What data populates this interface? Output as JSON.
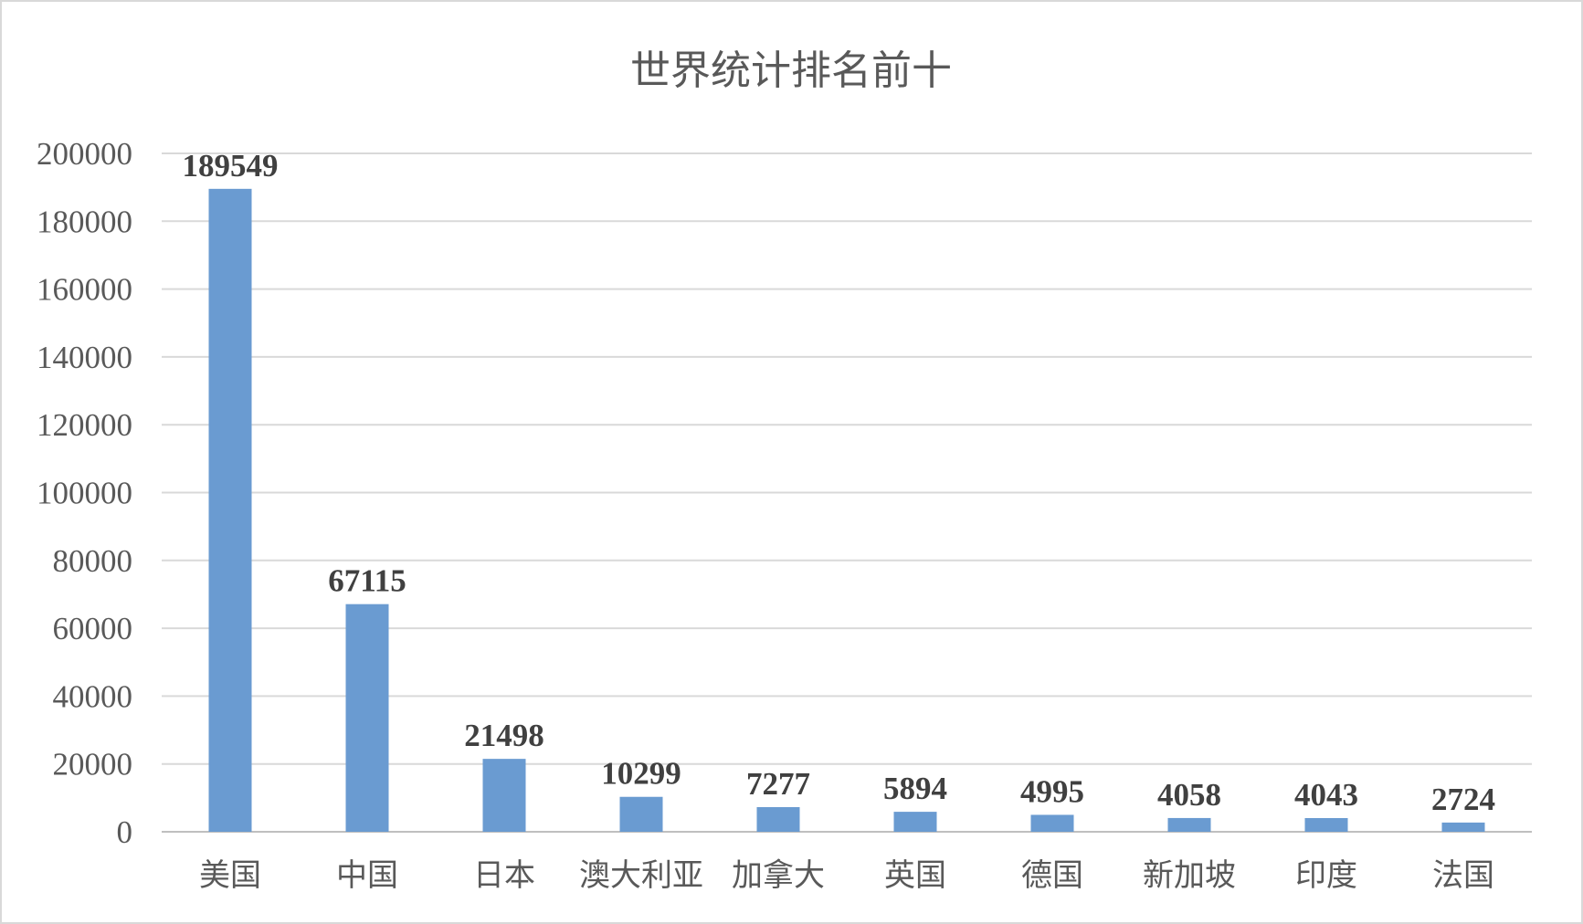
{
  "chart_data": {
    "type": "bar",
    "title": "世界统计排名前十",
    "categories": [
      "美国",
      "中国",
      "日本",
      "澳大利亚",
      "加拿大",
      "英国",
      "德国",
      "新加坡",
      "印度",
      "法国"
    ],
    "values": [
      189549,
      67115,
      21498,
      10299,
      7277,
      5894,
      4995,
      4058,
      4043,
      2724
    ],
    "data_labels": [
      "189549",
      "67115",
      "21498",
      "10299",
      "7277",
      "5894",
      "4995",
      "4058",
      "4043",
      "2724"
    ],
    "yticks": [
      "0",
      "20000",
      "40000",
      "60000",
      "80000",
      "100000",
      "120000",
      "140000",
      "160000",
      "180000",
      "200000"
    ],
    "ylim": [
      0,
      200000
    ],
    "grid": true,
    "legend": false,
    "bar_color": "#6a9bd1"
  }
}
